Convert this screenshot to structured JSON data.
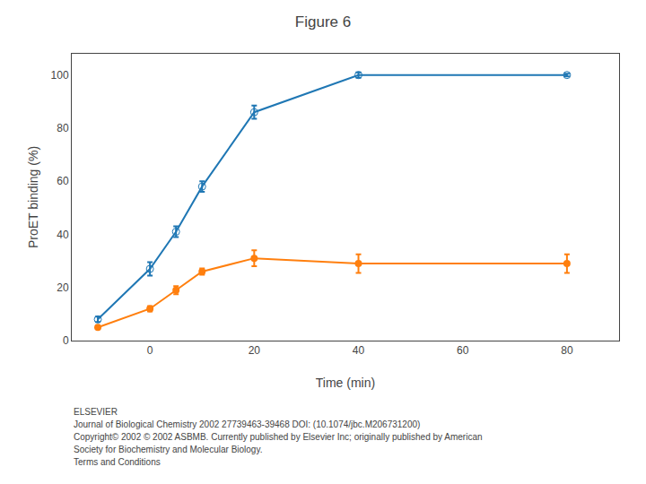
{
  "chart_data": {
    "type": "line",
    "title": "Figure 6",
    "x_label": "Time (min)",
    "y_label": "ProET binding (%)",
    "x": [
      -10,
      0,
      5,
      10,
      20,
      40,
      80
    ],
    "series": [
      {
        "marker": "circle-open",
        "values": [
          8,
          27,
          41,
          58,
          86,
          100,
          100
        ],
        "errors": [
          1.0,
          2.5,
          2.0,
          2.0,
          2.5,
          1.0,
          0.5
        ]
      },
      {
        "marker": "circle",
        "values": [
          5,
          12,
          19,
          26,
          31,
          29,
          29
        ],
        "errors": [
          0.3,
          1.0,
          1.5,
          1.2,
          3.0,
          3.5,
          3.5
        ]
      }
    ],
    "xlim": [
      -15,
      90
    ],
    "ylim": [
      0,
      108
    ],
    "xticks": [
      0,
      20,
      40,
      60,
      80
    ],
    "yticks": [
      0,
      20,
      40,
      60,
      80,
      100
    ],
    "grid": false,
    "annotations": [
      "ELSEVIER",
      "Journal of Biological Chemistry 2002 27739463-39468 DOI: (10.1074/jbc.M206731200)",
      "Copyright© 2002 © 2002 ASBMB. Currently published by Elsevier Inc; originally published by American",
      "Society for Biochemistry and Molecular Biology.",
      "Terms and Conditions"
    ]
  }
}
